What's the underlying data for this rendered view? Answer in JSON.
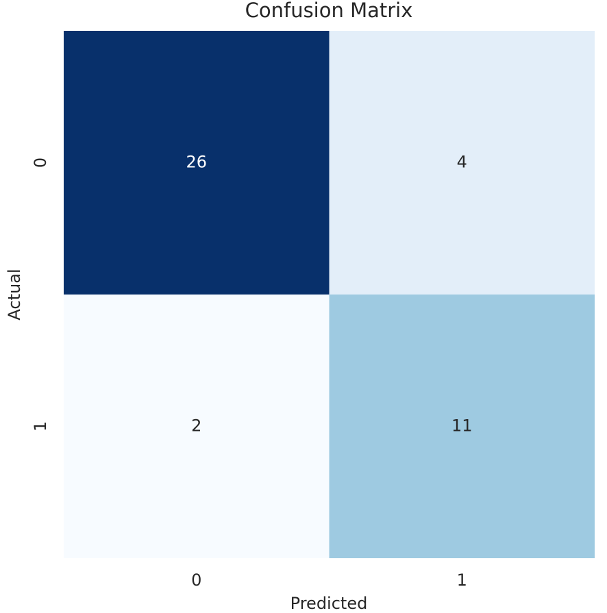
{
  "chart_data": {
    "type": "heatmap",
    "title": "Confusion Matrix",
    "x_label": "Predicted",
    "y_label": "Actual",
    "x_categories": [
      "0",
      "1"
    ],
    "y_categories": [
      "0",
      "1"
    ],
    "values": [
      [
        26,
        4
      ],
      [
        2,
        11
      ]
    ],
    "colors": [
      [
        "#08306b",
        "#e3eef9"
      ],
      [
        "#f7fbff",
        "#9ecae1"
      ]
    ]
  }
}
